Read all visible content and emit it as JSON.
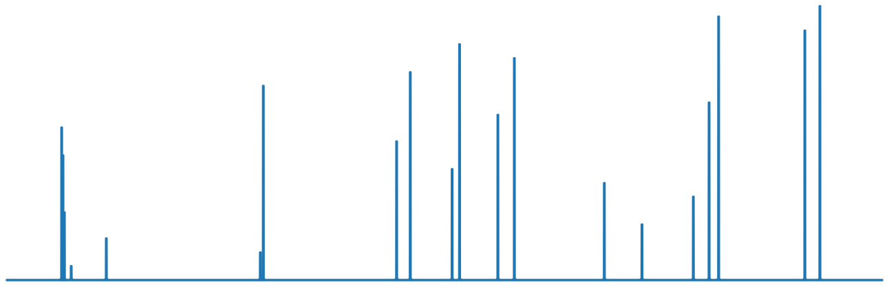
{
  "chart_data": {
    "type": "line",
    "title": "",
    "xlabel": "",
    "ylabel": "",
    "grid": false,
    "axes_visible": false,
    "legend": "none",
    "color": "#1f77b4",
    "xlim": [
      0,
      1.0
    ],
    "ylim": [
      0,
      1.0
    ],
    "baseline": 0,
    "peaks": [
      {
        "x": 0.0626,
        "y": 0.557
      },
      {
        "x": 0.0641,
        "y": 0.455
      },
      {
        "x": 0.0657,
        "y": 0.247
      },
      {
        "x": 0.0735,
        "y": 0.051
      },
      {
        "x": 0.1136,
        "y": 0.152
      },
      {
        "x": 0.2896,
        "y": 0.101
      },
      {
        "x": 0.293,
        "y": 0.709
      },
      {
        "x": 0.4453,
        "y": 0.506
      },
      {
        "x": 0.4609,
        "y": 0.759
      },
      {
        "x": 0.5087,
        "y": 0.405
      },
      {
        "x": 0.5172,
        "y": 0.861
      },
      {
        "x": 0.561,
        "y": 0.603
      },
      {
        "x": 0.5798,
        "y": 0.81
      },
      {
        "x": 0.6826,
        "y": 0.354
      },
      {
        "x": 0.7256,
        "y": 0.203
      },
      {
        "x": 0.7843,
        "y": 0.304
      },
      {
        "x": 0.8023,
        "y": 0.648
      },
      {
        "x": 0.8132,
        "y": 0.962
      },
      {
        "x": 0.9117,
        "y": 0.911
      },
      {
        "x": 0.9289,
        "y": 1.0
      }
    ]
  }
}
